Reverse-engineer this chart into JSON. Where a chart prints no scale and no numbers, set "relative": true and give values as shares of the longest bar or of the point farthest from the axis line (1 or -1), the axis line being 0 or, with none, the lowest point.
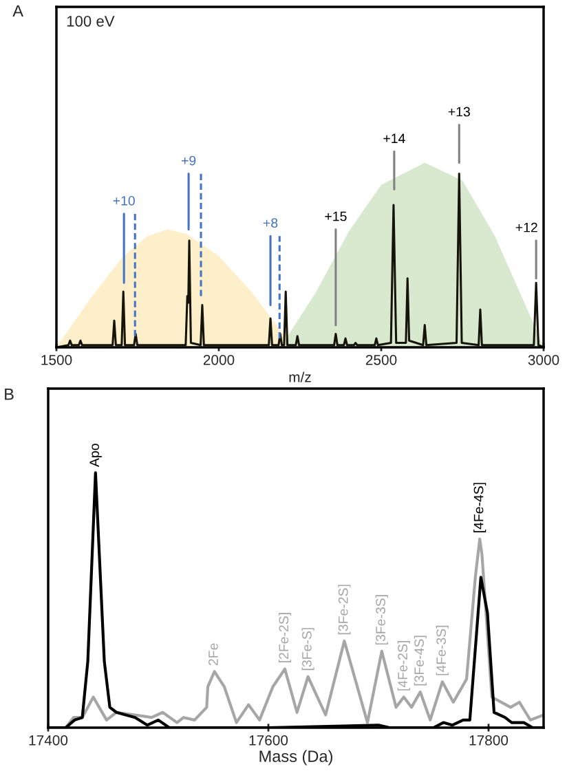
{
  "chart_data": [
    {
      "type": "line",
      "title": "A",
      "xlabel": "m/z",
      "relative": true,
      "tick_labels": "x",
      "xlim": [
        1500,
        3000
      ],
      "xticks": [
        1500,
        2000,
        2500,
        3000
      ],
      "annotations": [
        "100 eV",
        {
          "text": "+10",
          "x": 1708,
          "y": 0.6
        },
        {
          "text": "+9",
          "x": 1907,
          "y": 0.78
        },
        {
          "text": "+8",
          "x": 2159,
          "y": 0.5
        },
        {
          "text": "+15",
          "x": 2360,
          "y": 0.53
        },
        {
          "text": "+14",
          "x": 2540,
          "y": 0.88
        },
        {
          "text": "+13",
          "x": 2740,
          "y": 1.0
        },
        {
          "text": "+12",
          "x": 2977,
          "y": 0.48
        }
      ],
      "series": [
        {
          "type": "area",
          "color": "#fdefc9",
          "x": [
            1500,
            1600,
            1700,
            1780,
            1841,
            1900,
            2000,
            2100,
            2230
          ],
          "values": [
            0,
            0.21,
            0.4,
            0.5,
            0.53,
            0.51,
            0.41,
            0.25,
            0
          ]
        },
        {
          "type": "area",
          "color": "#d9e9cf",
          "x": [
            2190,
            2300,
            2400,
            2500,
            2634,
            2750,
            2850,
            2950,
            3000
          ],
          "values": [
            0,
            0.25,
            0.52,
            0.73,
            0.83,
            0.75,
            0.5,
            0.17,
            0
          ]
        },
        {
          "color": "#141408",
          "x": [
            1500,
            1537,
            1542,
            1547,
            1569,
            1574,
            1579,
            1673,
            1678,
            1683,
            1701,
            1706,
            1711,
            1739,
            1744,
            1749,
            1898,
            1903,
            1906,
            1909,
            1914,
            1944,
            1949,
            1954,
            2154,
            2159,
            2164,
            2184,
            2189,
            2194,
            2201,
            2206,
            2211,
            2237,
            2242,
            2247,
            2355,
            2360,
            2365,
            2385,
            2390,
            2395,
            2416,
            2421,
            2426,
            2480,
            2485,
            2490,
            2530,
            2538,
            2546,
            2576,
            2581,
            2586,
            2629,
            2634,
            2639,
            2732,
            2740,
            2748,
            2800,
            2805,
            2810,
            2970,
            2977,
            2984,
            3000
          ],
          "values": [
            0,
            0.01,
            0.03,
            0.01,
            0.01,
            0.03,
            0.01,
            0.01,
            0.12,
            0.01,
            0.01,
            0.25,
            0.01,
            0.01,
            0.06,
            0.01,
            0.01,
            0.23,
            0.2,
            0.48,
            0.02,
            0.01,
            0.19,
            0.01,
            0.01,
            0.13,
            0.01,
            0.01,
            0.06,
            0.01,
            0.01,
            0.25,
            0.01,
            0.01,
            0.05,
            0.01,
            0.01,
            0.06,
            0.01,
            0.01,
            0.04,
            0.01,
            0.01,
            0.02,
            0.01,
            0.01,
            0.04,
            0.01,
            0.02,
            0.64,
            0.02,
            0.02,
            0.31,
            0.03,
            0.01,
            0.1,
            0.01,
            0.02,
            0.78,
            0.02,
            0.01,
            0.17,
            0.01,
            0.01,
            0.29,
            0.01,
            0
          ]
        },
        {
          "color": "#4472c4",
          "x": [
            1708,
            1708,
            null,
            1907,
            1907,
            null,
            2159,
            2159
          ],
          "values": [
            0.29,
            0.6,
            null,
            0.53,
            0.78,
            null,
            0.19,
            0.5
          ]
        },
        {
          "color": "#4472c4",
          "line_style": "dashed",
          "x": [
            1742,
            1742,
            null,
            1945,
            1945,
            null,
            2187,
            2187
          ],
          "values": [
            0.05,
            0.6,
            null,
            0.23,
            0.78,
            null,
            0.04,
            0.5
          ]
        },
        {
          "color": "#808080",
          "x": [
            2360,
            2360,
            null,
            2540,
            2540,
            null,
            2740,
            2740,
            null,
            2977,
            2977
          ],
          "values": [
            0.1,
            0.53,
            null,
            0.71,
            0.88,
            null,
            0.83,
            1.0,
            null,
            0.31,
            0.48
          ]
        }
      ]
    },
    {
      "type": "line",
      "title": "B",
      "xlabel": "Mass (Da)",
      "relative": true,
      "tick_labels": "x",
      "xlim": [
        17400,
        17850
      ],
      "xticks": [
        17400,
        17600,
        17800
      ],
      "annotations": [
        {
          "text": "Apo",
          "x": 17443,
          "y": 1.0
        },
        {
          "text": "2Fe",
          "x": 17551,
          "y": 0.22
        },
        {
          "text": "[2Fe-2S]",
          "x": 17615,
          "y": 0.23
        },
        {
          "text": "[3Fe-S]",
          "x": 17636,
          "y": 0.2
        },
        {
          "text": "[3Fe-2S]",
          "x": 17669,
          "y": 0.34
        },
        {
          "text": "[3Fe-3S]",
          "x": 17703,
          "y": 0.3
        },
        {
          "text": "[4Fe-2S]",
          "x": 17723,
          "y": 0.12
        },
        {
          "text": "[3Fe-4S]",
          "x": 17738,
          "y": 0.14
        },
        {
          "text": "[4Fe-3S]",
          "x": 17758,
          "y": 0.18
        },
        {
          "text": "[4Fe-4S]",
          "x": 17792,
          "y": 0.74
        }
      ],
      "series": [
        {
          "color": "#a6a6a6",
          "x": [
            17416,
            17423,
            17431,
            17441,
            17453,
            17462,
            17479,
            17494,
            17504,
            17517,
            17523,
            17533,
            17544,
            17545,
            17551,
            17560,
            17571,
            17582,
            17592,
            17604,
            17615,
            17626,
            17636,
            17652,
            17669,
            17690,
            17703,
            17716,
            17723,
            17730,
            17738,
            17747,
            17758,
            17768,
            17780,
            17788,
            17792,
            17794,
            17803,
            17820,
            17828,
            17838,
            17850
          ],
          "values": [
            0,
            0.04,
            0.04,
            0.12,
            0.03,
            0.06,
            0.05,
            0.04,
            0.06,
            0.02,
            0.04,
            0.03,
            0.08,
            0.16,
            0.22,
            0.16,
            0.02,
            0.09,
            0.03,
            0.16,
            0.23,
            0.06,
            0.2,
            0.05,
            0.34,
            0.02,
            0.3,
            0.08,
            0.12,
            0.08,
            0.14,
            0.03,
            0.18,
            0.1,
            0.19,
            0.59,
            0.74,
            0.68,
            0.12,
            0.08,
            0.1,
            0.03,
            0.05
          ]
        },
        {
          "color": "#000000",
          "x": [
            17400,
            17416,
            17424,
            17431,
            17436,
            17443,
            17451,
            17456,
            17462,
            17479,
            17490,
            17500,
            17510,
            17600,
            17700,
            17710,
            17750,
            17759,
            17767,
            17777,
            17783,
            17793,
            17799,
            17805,
            17815,
            17821,
            17832,
            17840,
            17850
          ],
          "values": [
            0,
            0,
            0.03,
            0.04,
            0.26,
            1.0,
            0.26,
            0.08,
            0.06,
            0.04,
            0.01,
            0.03,
            0,
            0,
            0.01,
            0,
            0,
            0.02,
            0.01,
            0.03,
            0.03,
            0.59,
            0.45,
            0.06,
            0.04,
            0.02,
            0.02,
            0,
            0
          ]
        }
      ]
    }
  ]
}
